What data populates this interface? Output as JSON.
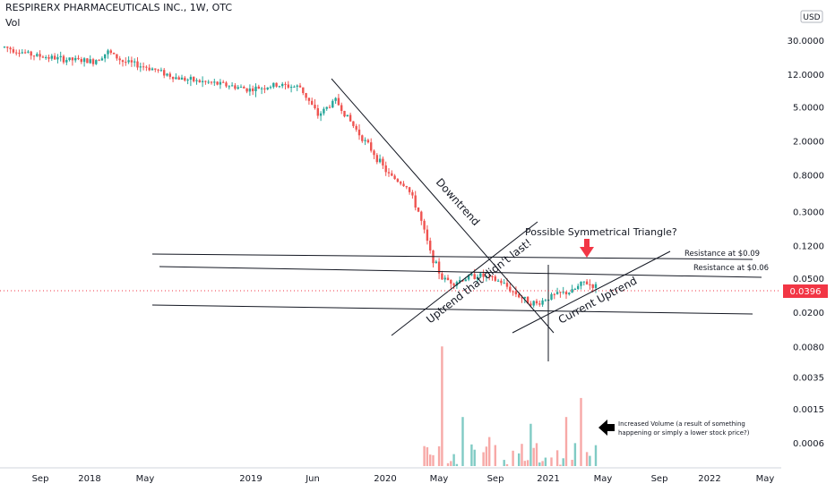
{
  "header": {
    "symbol": "RESPIRERX PHARMACEUTICALS INC., 1W, OTC",
    "volume_label": "Vol"
  },
  "currency": "USD",
  "current_price": "0.0396",
  "colors": {
    "up": "#26a69a",
    "down": "#ef5350",
    "price_tag": "#f23645",
    "vol_up": "#80cbc4",
    "vol_down": "#f7a9a7",
    "line": "#131722"
  },
  "annotations": {
    "downtrend": "Downtrend",
    "uptrend_failed": "Uptrend that didn't last!",
    "current_uptrend": "Current Uptrend",
    "triangle": "Possible Symmetrical Triangle?",
    "resistance_009": "Resistance at $0.09",
    "resistance_006": "Resistance at $0.06",
    "volume_note_1": "Increased Volume (a result of something",
    "volume_note_2": "happening or simply a lower stock price?)"
  },
  "chart_data": {
    "type": "candlestick",
    "scale": "log",
    "x_ticks": [
      "Sep",
      "2018",
      "May",
      "2019",
      "Jun",
      "2020",
      "May",
      "Sep",
      "2021",
      "May",
      "Sep",
      "2022",
      "May"
    ],
    "y_ticks": [
      "30.0000",
      "12.0000",
      "5.0000",
      "2.0000",
      "0.8000",
      "0.3000",
      "0.1200",
      "0.0500",
      "0.0200",
      "0.0080",
      "0.0035",
      "0.0015",
      "0.0006"
    ],
    "y_ticks_values": [
      30,
      12,
      5,
      2,
      0.8,
      0.3,
      0.12,
      0.05,
      0.02,
      0.008,
      0.0035,
      0.0015,
      0.0006
    ],
    "series": [
      {
        "name": "Price",
        "anchors": [
          [
            0,
            25
          ],
          [
            10,
            20
          ],
          [
            20,
            18
          ],
          [
            30,
            17
          ],
          [
            35,
            22
          ],
          [
            40,
            17
          ],
          [
            50,
            14
          ],
          [
            58,
            11
          ],
          [
            65,
            10
          ],
          [
            75,
            9
          ],
          [
            83,
            8
          ],
          [
            92,
            9
          ],
          [
            100,
            8.5
          ],
          [
            106,
            4
          ],
          [
            112,
            6
          ],
          [
            118,
            3
          ],
          [
            124,
            1.6
          ],
          [
            130,
            0.8
          ],
          [
            136,
            0.6
          ],
          [
            140,
            0.3
          ],
          [
            144,
            0.1
          ],
          [
            148,
            0.05
          ],
          [
            152,
            0.045
          ],
          [
            156,
            0.05
          ],
          [
            160,
            0.055
          ],
          [
            164,
            0.05
          ],
          [
            168,
            0.045
          ],
          [
            172,
            0.035
          ],
          [
            176,
            0.028
          ],
          [
            180,
            0.025
          ],
          [
            184,
            0.03
          ],
          [
            188,
            0.033
          ],
          [
            192,
            0.035
          ],
          [
            196,
            0.045
          ],
          [
            200,
            0.04
          ]
        ]
      }
    ],
    "volume_spikes": [
      [
        148,
        0.008
      ],
      [
        155,
        0.0012
      ],
      [
        164,
        0.0007
      ],
      [
        178,
        0.001
      ],
      [
        190,
        0.0012
      ],
      [
        195,
        0.002
      ]
    ],
    "volume_label": "Vol",
    "last_value": 0.0396
  }
}
